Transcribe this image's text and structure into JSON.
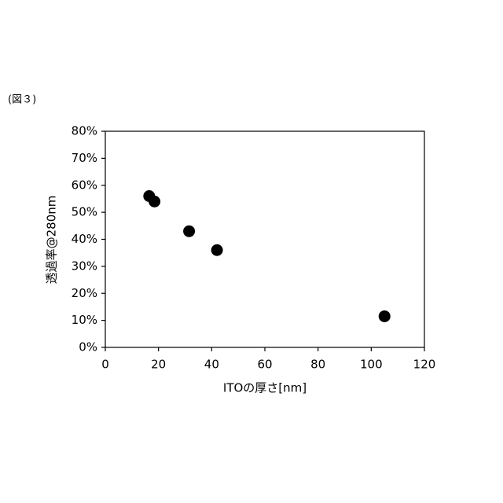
{
  "figure_label": "(図３)",
  "chart_data": {
    "type": "scatter",
    "x_label": "ITOの厚さ[nm]",
    "y_label": "透過率@280nm",
    "x": [
      16.5,
      18.5,
      31.5,
      42,
      105
    ],
    "values": [
      56,
      54,
      43,
      36,
      11.5
    ],
    "color": "#000000",
    "xlim": [
      0,
      120
    ],
    "xticks": [
      0,
      20,
      40,
      60,
      80,
      100,
      120
    ],
    "ylim": [
      0,
      80
    ],
    "yticks": [
      {
        "value": 0,
        "label": "0%"
      },
      {
        "value": 10,
        "label": "10%"
      },
      {
        "value": 20,
        "label": "20%"
      },
      {
        "value": 30,
        "label": "30%"
      },
      {
        "value": 40,
        "label": "40%"
      },
      {
        "value": 50,
        "label": "50%"
      },
      {
        "value": 60,
        "label": "60%"
      },
      {
        "value": 70,
        "label": "70%"
      },
      {
        "value": 80,
        "label": "80%"
      }
    ],
    "grid": false
  }
}
